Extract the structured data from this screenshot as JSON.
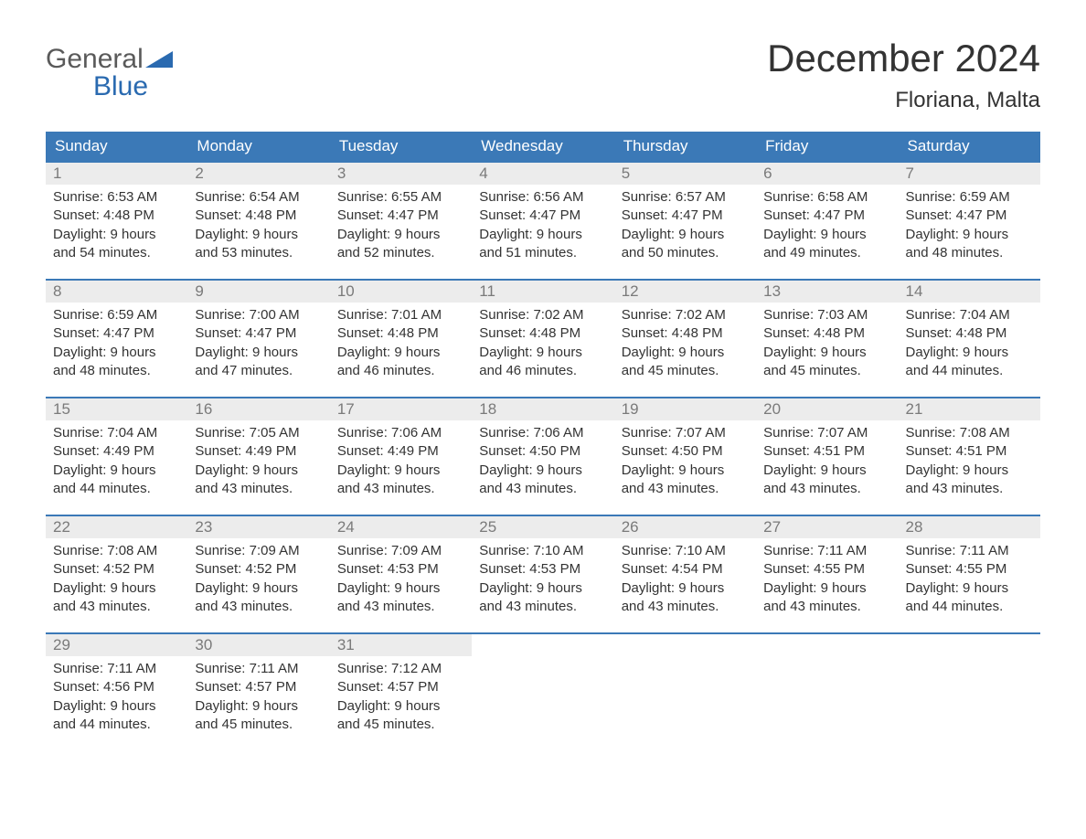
{
  "logo": {
    "word1": "General",
    "word2": "Blue"
  },
  "title": "December 2024",
  "subtitle": "Floriana, Malta",
  "colors": {
    "header_bg": "#3b79b7",
    "header_text": "#ffffff",
    "week_border": "#3b79b7",
    "daynum_bg": "#ececec",
    "daynum_text": "#7a7a7a",
    "body_text": "#333333",
    "logo_gray": "#5a5a5a",
    "logo_blue": "#2a6ab0",
    "page_bg": "#ffffff"
  },
  "weekdays": [
    "Sunday",
    "Monday",
    "Tuesday",
    "Wednesday",
    "Thursday",
    "Friday",
    "Saturday"
  ],
  "labels": {
    "sunrise": "Sunrise:",
    "sunset": "Sunset:",
    "daylight": "Daylight:"
  },
  "weeks": [
    [
      {
        "day": "1",
        "sunrise": "6:53 AM",
        "sunset": "4:48 PM",
        "daylight1": "9 hours",
        "daylight2": "and 54 minutes."
      },
      {
        "day": "2",
        "sunrise": "6:54 AM",
        "sunset": "4:48 PM",
        "daylight1": "9 hours",
        "daylight2": "and 53 minutes."
      },
      {
        "day": "3",
        "sunrise": "6:55 AM",
        "sunset": "4:47 PM",
        "daylight1": "9 hours",
        "daylight2": "and 52 minutes."
      },
      {
        "day": "4",
        "sunrise": "6:56 AM",
        "sunset": "4:47 PM",
        "daylight1": "9 hours",
        "daylight2": "and 51 minutes."
      },
      {
        "day": "5",
        "sunrise": "6:57 AM",
        "sunset": "4:47 PM",
        "daylight1": "9 hours",
        "daylight2": "and 50 minutes."
      },
      {
        "day": "6",
        "sunrise": "6:58 AM",
        "sunset": "4:47 PM",
        "daylight1": "9 hours",
        "daylight2": "and 49 minutes."
      },
      {
        "day": "7",
        "sunrise": "6:59 AM",
        "sunset": "4:47 PM",
        "daylight1": "9 hours",
        "daylight2": "and 48 minutes."
      }
    ],
    [
      {
        "day": "8",
        "sunrise": "6:59 AM",
        "sunset": "4:47 PM",
        "daylight1": "9 hours",
        "daylight2": "and 48 minutes."
      },
      {
        "day": "9",
        "sunrise": "7:00 AM",
        "sunset": "4:47 PM",
        "daylight1": "9 hours",
        "daylight2": "and 47 minutes."
      },
      {
        "day": "10",
        "sunrise": "7:01 AM",
        "sunset": "4:48 PM",
        "daylight1": "9 hours",
        "daylight2": "and 46 minutes."
      },
      {
        "day": "11",
        "sunrise": "7:02 AM",
        "sunset": "4:48 PM",
        "daylight1": "9 hours",
        "daylight2": "and 46 minutes."
      },
      {
        "day": "12",
        "sunrise": "7:02 AM",
        "sunset": "4:48 PM",
        "daylight1": "9 hours",
        "daylight2": "and 45 minutes."
      },
      {
        "day": "13",
        "sunrise": "7:03 AM",
        "sunset": "4:48 PM",
        "daylight1": "9 hours",
        "daylight2": "and 45 minutes."
      },
      {
        "day": "14",
        "sunrise": "7:04 AM",
        "sunset": "4:48 PM",
        "daylight1": "9 hours",
        "daylight2": "and 44 minutes."
      }
    ],
    [
      {
        "day": "15",
        "sunrise": "7:04 AM",
        "sunset": "4:49 PM",
        "daylight1": "9 hours",
        "daylight2": "and 44 minutes."
      },
      {
        "day": "16",
        "sunrise": "7:05 AM",
        "sunset": "4:49 PM",
        "daylight1": "9 hours",
        "daylight2": "and 43 minutes."
      },
      {
        "day": "17",
        "sunrise": "7:06 AM",
        "sunset": "4:49 PM",
        "daylight1": "9 hours",
        "daylight2": "and 43 minutes."
      },
      {
        "day": "18",
        "sunrise": "7:06 AM",
        "sunset": "4:50 PM",
        "daylight1": "9 hours",
        "daylight2": "and 43 minutes."
      },
      {
        "day": "19",
        "sunrise": "7:07 AM",
        "sunset": "4:50 PM",
        "daylight1": "9 hours",
        "daylight2": "and 43 minutes."
      },
      {
        "day": "20",
        "sunrise": "7:07 AM",
        "sunset": "4:51 PM",
        "daylight1": "9 hours",
        "daylight2": "and 43 minutes."
      },
      {
        "day": "21",
        "sunrise": "7:08 AM",
        "sunset": "4:51 PM",
        "daylight1": "9 hours",
        "daylight2": "and 43 minutes."
      }
    ],
    [
      {
        "day": "22",
        "sunrise": "7:08 AM",
        "sunset": "4:52 PM",
        "daylight1": "9 hours",
        "daylight2": "and 43 minutes."
      },
      {
        "day": "23",
        "sunrise": "7:09 AM",
        "sunset": "4:52 PM",
        "daylight1": "9 hours",
        "daylight2": "and 43 minutes."
      },
      {
        "day": "24",
        "sunrise": "7:09 AM",
        "sunset": "4:53 PM",
        "daylight1": "9 hours",
        "daylight2": "and 43 minutes."
      },
      {
        "day": "25",
        "sunrise": "7:10 AM",
        "sunset": "4:53 PM",
        "daylight1": "9 hours",
        "daylight2": "and 43 minutes."
      },
      {
        "day": "26",
        "sunrise": "7:10 AM",
        "sunset": "4:54 PM",
        "daylight1": "9 hours",
        "daylight2": "and 43 minutes."
      },
      {
        "day": "27",
        "sunrise": "7:11 AM",
        "sunset": "4:55 PM",
        "daylight1": "9 hours",
        "daylight2": "and 43 minutes."
      },
      {
        "day": "28",
        "sunrise": "7:11 AM",
        "sunset": "4:55 PM",
        "daylight1": "9 hours",
        "daylight2": "and 44 minutes."
      }
    ],
    [
      {
        "day": "29",
        "sunrise": "7:11 AM",
        "sunset": "4:56 PM",
        "daylight1": "9 hours",
        "daylight2": "and 44 minutes."
      },
      {
        "day": "30",
        "sunrise": "7:11 AM",
        "sunset": "4:57 PM",
        "daylight1": "9 hours",
        "daylight2": "and 45 minutes."
      },
      {
        "day": "31",
        "sunrise": "7:12 AM",
        "sunset": "4:57 PM",
        "daylight1": "9 hours",
        "daylight2": "and 45 minutes."
      },
      null,
      null,
      null,
      null
    ]
  ]
}
